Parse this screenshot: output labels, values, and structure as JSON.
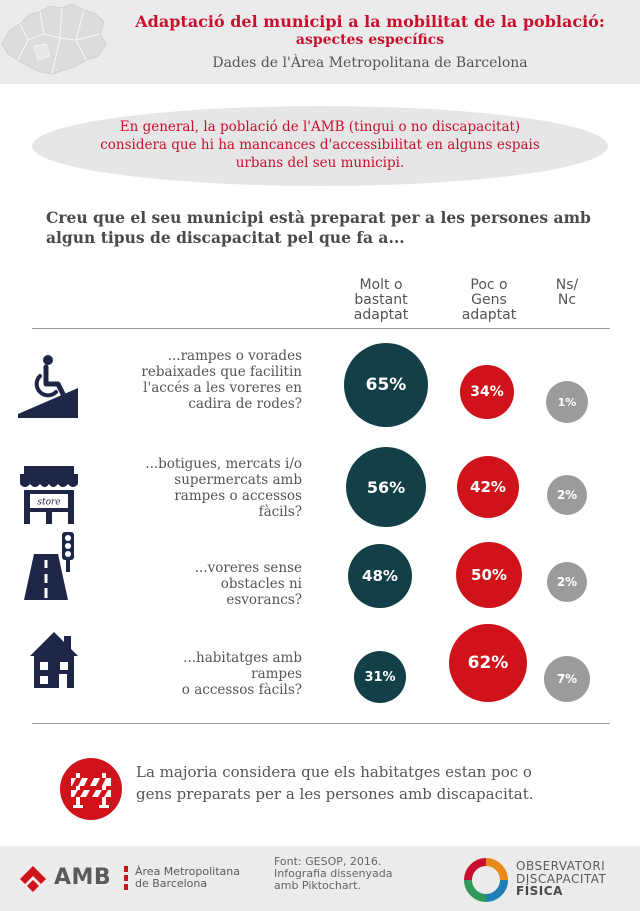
{
  "header": {
    "title_line1": "Adaptació del municipi a la mobilitat de la població:",
    "title_line2": "aspectes específics",
    "subtitle": "Dades de l'Àrea Metropolitana de Barcelona"
  },
  "intro": {
    "lines": [
      "En general, la població de l'AMB (tingui o no discapacitat)",
      "considera que hi ha mancances d'accessibilitat en alguns espais",
      "urbans del seu municipi."
    ]
  },
  "question": {
    "lines": [
      "Creu que el seu municipi està preparat per a les persones amb",
      "algun tipus de discapacitat pel que fa a..."
    ]
  },
  "columns": [
    {
      "lines": [
        "Molt o",
        "bastant",
        "adaptat"
      ],
      "color": "#123f48"
    },
    {
      "lines": [
        "Poc o",
        "Gens",
        "adaptat"
      ],
      "color": "#d0131a"
    },
    {
      "lines": [
        "Ns/",
        "Nc"
      ],
      "color": "#9b9b9b"
    }
  ],
  "rows": [
    {
      "icon": "wheelchair-ramp-icon",
      "label": [
        "...rampes o vorades",
        "rebaixades que facilitin",
        "l'accés a les voreres en",
        "cadira de rodes?"
      ],
      "adapted": "65%",
      "not_adapted": "34%",
      "dk": "1%"
    },
    {
      "icon": "store-icon",
      "label": [
        "...botigues, mercats i/o",
        "supermercats amb",
        "rampes o accessos",
        "fàcils?"
      ],
      "adapted": "56%",
      "not_adapted": "42%",
      "dk": "2%",
      "store_sign": "store"
    },
    {
      "icon": "road-traffic-light-icon",
      "label": [
        "...voreres sense",
        "obstacles ni",
        "esvorancs?"
      ],
      "adapted": "48%",
      "not_adapted": "50%",
      "dk": "2%"
    },
    {
      "icon": "house-icon",
      "label": [
        "...habitatges amb",
        "rampes",
        "o accessos fàcils?"
      ],
      "adapted": "31%",
      "not_adapted": "62%",
      "dk": "7%"
    }
  ],
  "conclusion": {
    "icon": "road-barrier-icon",
    "lines": [
      "La majoria considera que els habitatges estan poc o",
      "gens preparats per a les persones amb discapacitat."
    ]
  },
  "footer": {
    "amb_logo": "AMB",
    "amb_sub": [
      "Àrea Metropolitana",
      "de Barcelona"
    ],
    "source": [
      "Font: GESOP, 2016.",
      "Infografia dissenyada",
      "amb Piktochart."
    ],
    "observatori": [
      "OBSERVATORI",
      "DISCAPACITAT",
      "FÍSICA"
    ]
  },
  "colors": {
    "accent": "#c8102e",
    "dark": "#123f48",
    "red": "#d0131a",
    "grey": "#9b9b9b"
  }
}
